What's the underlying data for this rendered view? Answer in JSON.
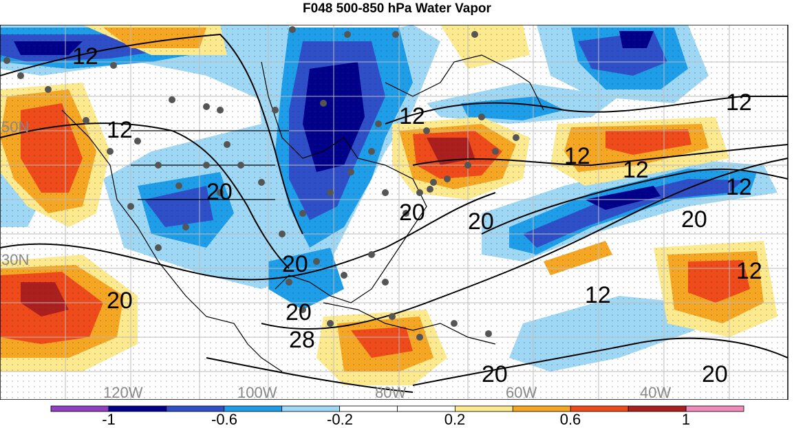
{
  "title": "F048 500-850 hPa Water Vapor",
  "map": {
    "lon_labels": [
      "120W",
      "100W",
      "80W",
      "60W",
      "40W"
    ],
    "lat_labels": [
      "50N",
      "30N"
    ],
    "contour_labels": [
      "12",
      "12",
      "12",
      "20",
      "20",
      "12",
      "12",
      "20",
      "20",
      "20",
      "28",
      "20",
      "12",
      "12",
      "20",
      "20",
      "12",
      "12",
      "20"
    ]
  },
  "colorbar": {
    "colors": [
      "#8f3fc1",
      "#00008b",
      "#2e4fc7",
      "#1e9ee8",
      "#9fd8f4",
      "#ffffff",
      "#ffffff",
      "#fde98e",
      "#f5a623",
      "#ee4a1a",
      "#ab1f1f",
      "#f08cbc"
    ],
    "tick_labels": [
      "-1",
      "-0.6",
      "-0.2",
      "0.2",
      "0.6",
      "1"
    ]
  }
}
